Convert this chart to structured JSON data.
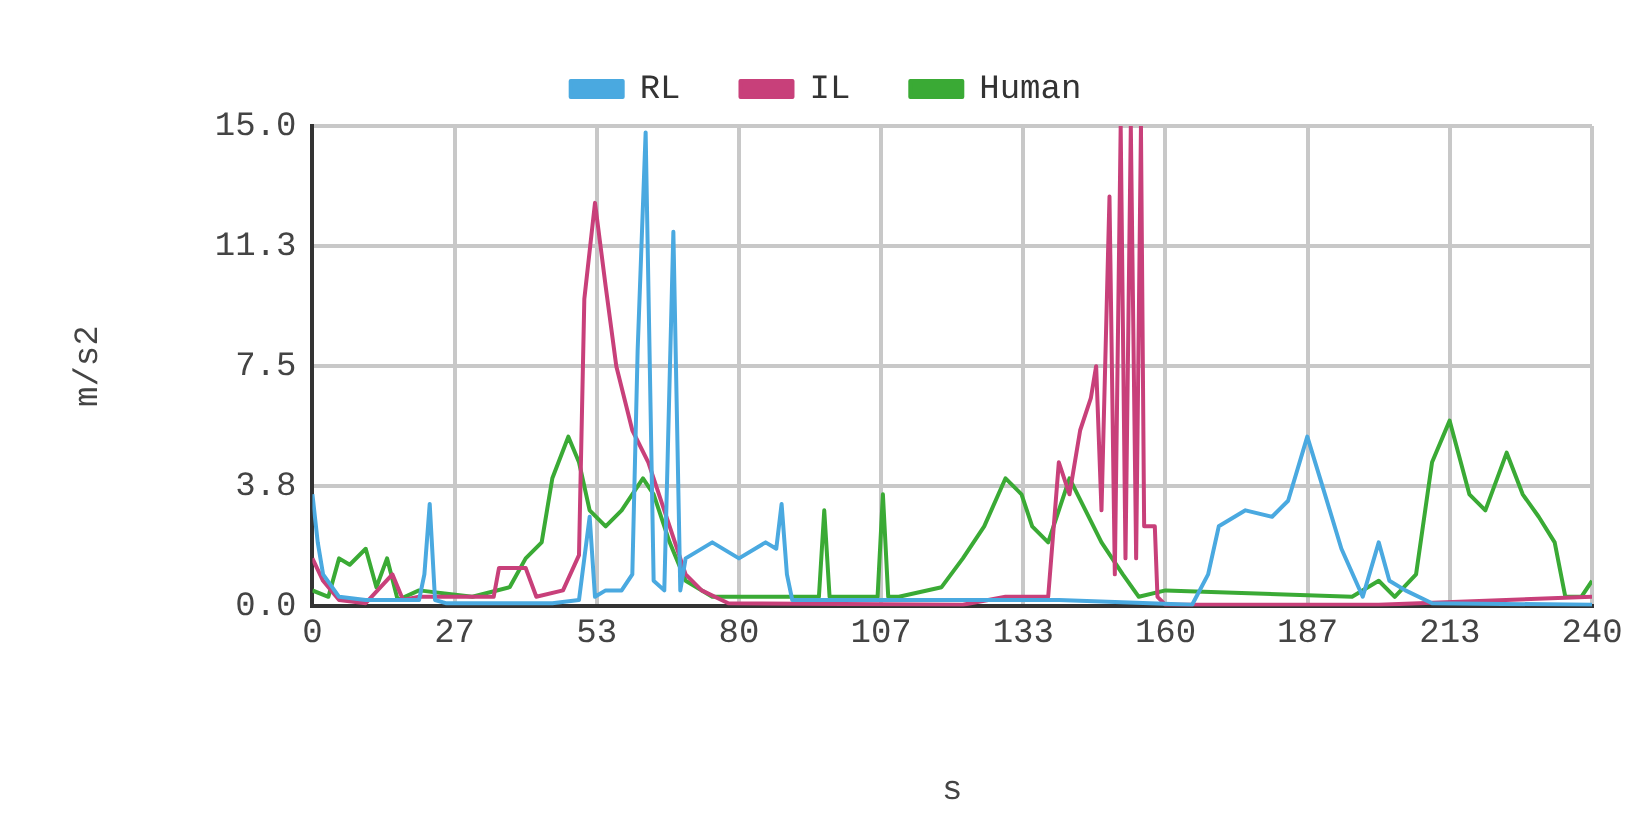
{
  "chart_data": {
    "type": "line",
    "xlabel": "s",
    "ylabel": "m/s2",
    "xlim": [
      0,
      240
    ],
    "ylim": [
      0,
      15
    ],
    "xticks": [
      0,
      {
        "value": 26.667,
        "label": "27"
      },
      {
        "value": 53.333,
        "label": "53"
      },
      80,
      {
        "value": 106.667,
        "label": "107"
      },
      {
        "value": 133.333,
        "label": "133"
      },
      160,
      {
        "value": 186.667,
        "label": "187"
      },
      {
        "value": 213.333,
        "label": "213"
      },
      240
    ],
    "yticks": [
      {
        "value": 0,
        "label": "0.0"
      },
      {
        "value": 3.75,
        "label": "3.8"
      },
      {
        "value": 7.5,
        "label": "7.5"
      },
      {
        "value": 11.25,
        "label": "11.3"
      },
      {
        "value": 15,
        "label": "15.0"
      }
    ],
    "grid": true,
    "legend": "top",
    "marker": "none",
    "line_style": "solid",
    "series": [
      {
        "name": "RL",
        "color": "#4aa9e0",
        "x": [
          0,
          1,
          2,
          5,
          10,
          20,
          21,
          22,
          23,
          25,
          35,
          45,
          50,
          52,
          53,
          55,
          58,
          60,
          61,
          62.5,
          64,
          66,
          67.7,
          69,
          70,
          75,
          80,
          85,
          87,
          88,
          89,
          90,
          100,
          120,
          140,
          165,
          168,
          170,
          175,
          180,
          183,
          186.6,
          189,
          193,
          197,
          200,
          202,
          205,
          210,
          240
        ],
        "values": [
          3.5,
          2.0,
          1.0,
          0.3,
          0.2,
          0.2,
          1.0,
          3.2,
          0.2,
          0.1,
          0.1,
          0.1,
          0.2,
          2.8,
          0.3,
          0.5,
          0.5,
          1.0,
          8.0,
          14.8,
          0.8,
          0.5,
          11.7,
          0.5,
          1.5,
          2.0,
          1.5,
          2.0,
          1.8,
          3.2,
          1.0,
          0.2,
          0.2,
          0.2,
          0.2,
          0.05,
          1.0,
          2.5,
          3.0,
          2.8,
          3.3,
          5.3,
          4.0,
          1.8,
          0.3,
          2.0,
          0.8,
          0.5,
          0.1,
          0.05
        ]
      },
      {
        "name": "IL",
        "color": "#c8407a",
        "x": [
          0,
          2,
          5,
          10,
          15,
          17,
          20,
          34,
          35,
          40,
          42,
          47,
          50,
          51,
          53,
          55,
          57,
          60,
          63,
          66,
          70,
          73,
          78,
          122,
          130,
          138,
          140,
          142,
          144,
          146,
          147,
          148,
          149.5,
          150.5,
          151.6,
          152.5,
          153.5,
          154.5,
          155.4,
          156,
          158,
          158.5,
          160,
          200,
          240
        ],
        "values": [
          1.5,
          0.8,
          0.2,
          0.1,
          1.0,
          0.2,
          0.3,
          0.3,
          1.2,
          1.2,
          0.3,
          0.5,
          1.6,
          9.6,
          12.6,
          10.0,
          7.5,
          5.5,
          4.5,
          3.0,
          1.0,
          0.5,
          0.1,
          0.05,
          0.3,
          0.3,
          4.5,
          3.5,
          5.5,
          6.5,
          7.5,
          3.0,
          12.8,
          1.0,
          15,
          1.5,
          15,
          1.5,
          15,
          2.5,
          2.5,
          0.3,
          0.05,
          0.05,
          0.3
        ]
      },
      {
        "name": "Human",
        "color": "#3aaa35",
        "x": [
          0,
          3,
          5,
          7,
          10,
          12,
          14,
          16,
          20,
          30,
          37,
          40,
          43,
          45,
          48,
          50,
          52,
          55,
          58,
          62,
          64,
          67,
          70,
          75,
          80,
          95,
          96,
          97,
          98,
          105,
          106,
          107,
          108,
          110,
          118,
          122,
          126,
          130,
          133,
          135,
          138,
          140,
          142,
          145,
          148,
          152,
          155,
          160,
          195,
          200,
          203,
          207,
          210,
          213.3,
          217,
          220,
          224,
          227,
          230,
          233,
          235,
          238,
          240
        ],
        "values": [
          0.5,
          0.3,
          1.5,
          1.3,
          1.8,
          0.6,
          1.5,
          0.2,
          0.5,
          0.3,
          0.6,
          1.5,
          2.0,
          4.0,
          5.3,
          4.5,
          3.0,
          2.5,
          3.0,
          4.0,
          3.5,
          2.0,
          0.8,
          0.3,
          0.3,
          0.3,
          3.0,
          0.3,
          0.3,
          0.3,
          0.3,
          3.5,
          0.3,
          0.3,
          0.6,
          1.5,
          2.5,
          4.0,
          3.5,
          2.5,
          2.0,
          3.0,
          4.0,
          3.0,
          2.0,
          1.0,
          0.3,
          0.5,
          0.3,
          0.8,
          0.3,
          1.0,
          4.5,
          5.8,
          3.5,
          3.0,
          4.8,
          3.5,
          2.8,
          2.0,
          0.3,
          0.3,
          0.8
        ]
      }
    ]
  }
}
